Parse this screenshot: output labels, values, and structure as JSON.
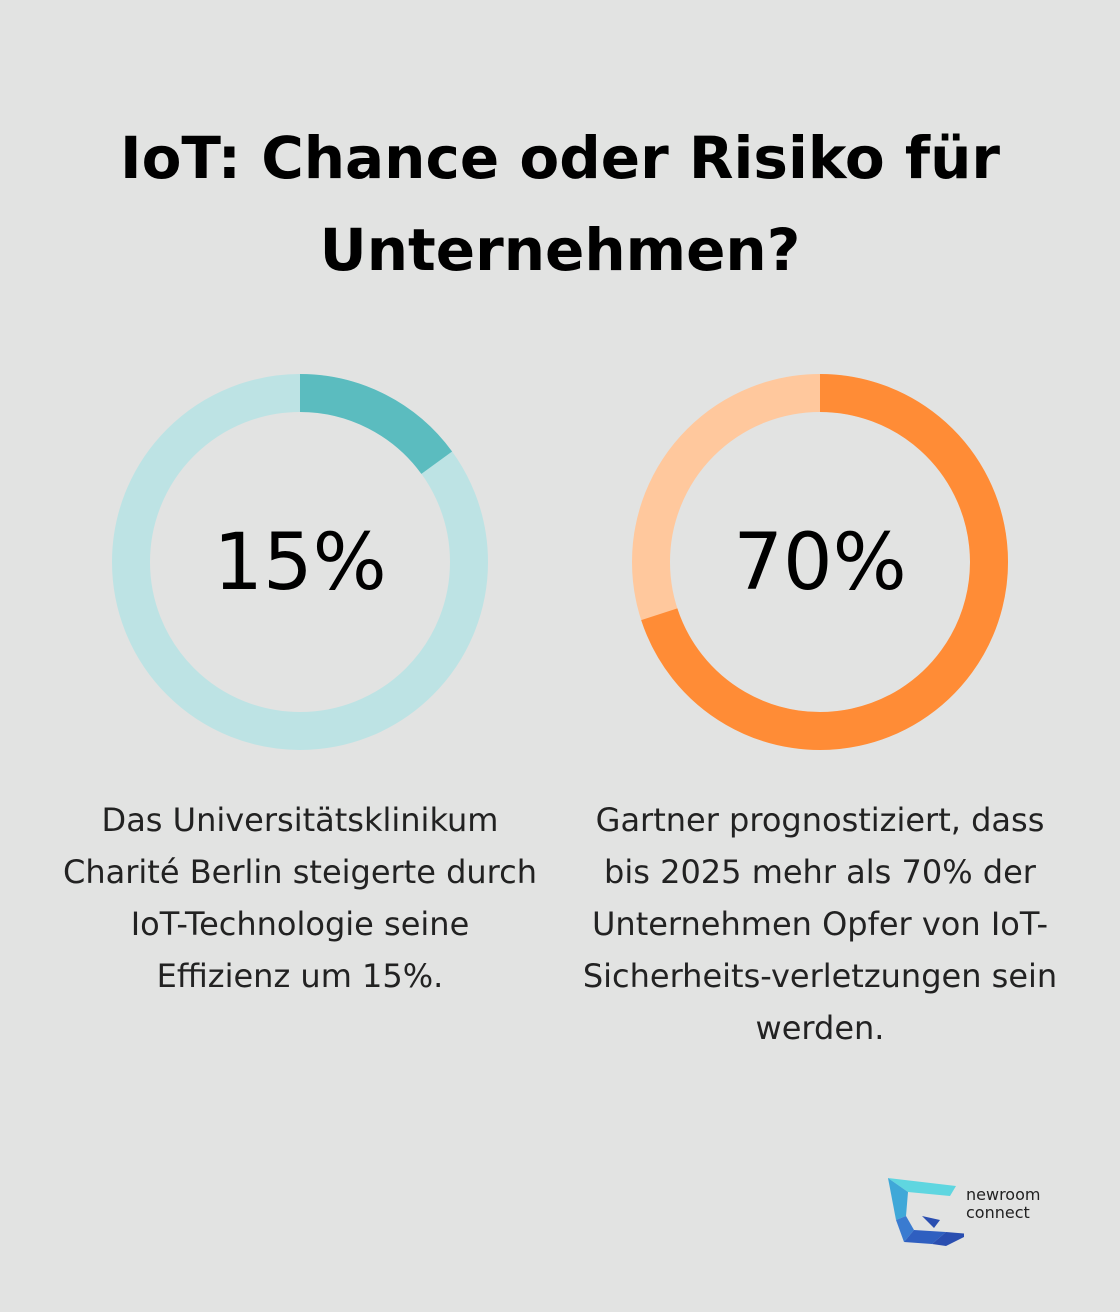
{
  "title": "IoT: Chance oder Risiko für Unternehmen?",
  "chart_data": [
    {
      "type": "pie",
      "variant": "donut",
      "value_label": "15%",
      "values": [
        15,
        85
      ],
      "colors": [
        "#5bbcbf",
        "#bde3e4"
      ],
      "description": "Das Universitätsklinikum Charité Berlin steigerte durch IoT-Technologie seine Effizienz um 15%."
    },
    {
      "type": "pie",
      "variant": "donut",
      "value_label": "70%",
      "values": [
        70,
        30
      ],
      "colors": [
        "#ff8c36",
        "#ffc89d"
      ],
      "description": "Gartner prognostiziert, dass bis 2025 mehr als 70% der Unternehmen Opfer von IoT-Sicherheits-verletzungen sein werden."
    }
  ],
  "logo": {
    "line1": "newroom",
    "line2": "connect"
  }
}
